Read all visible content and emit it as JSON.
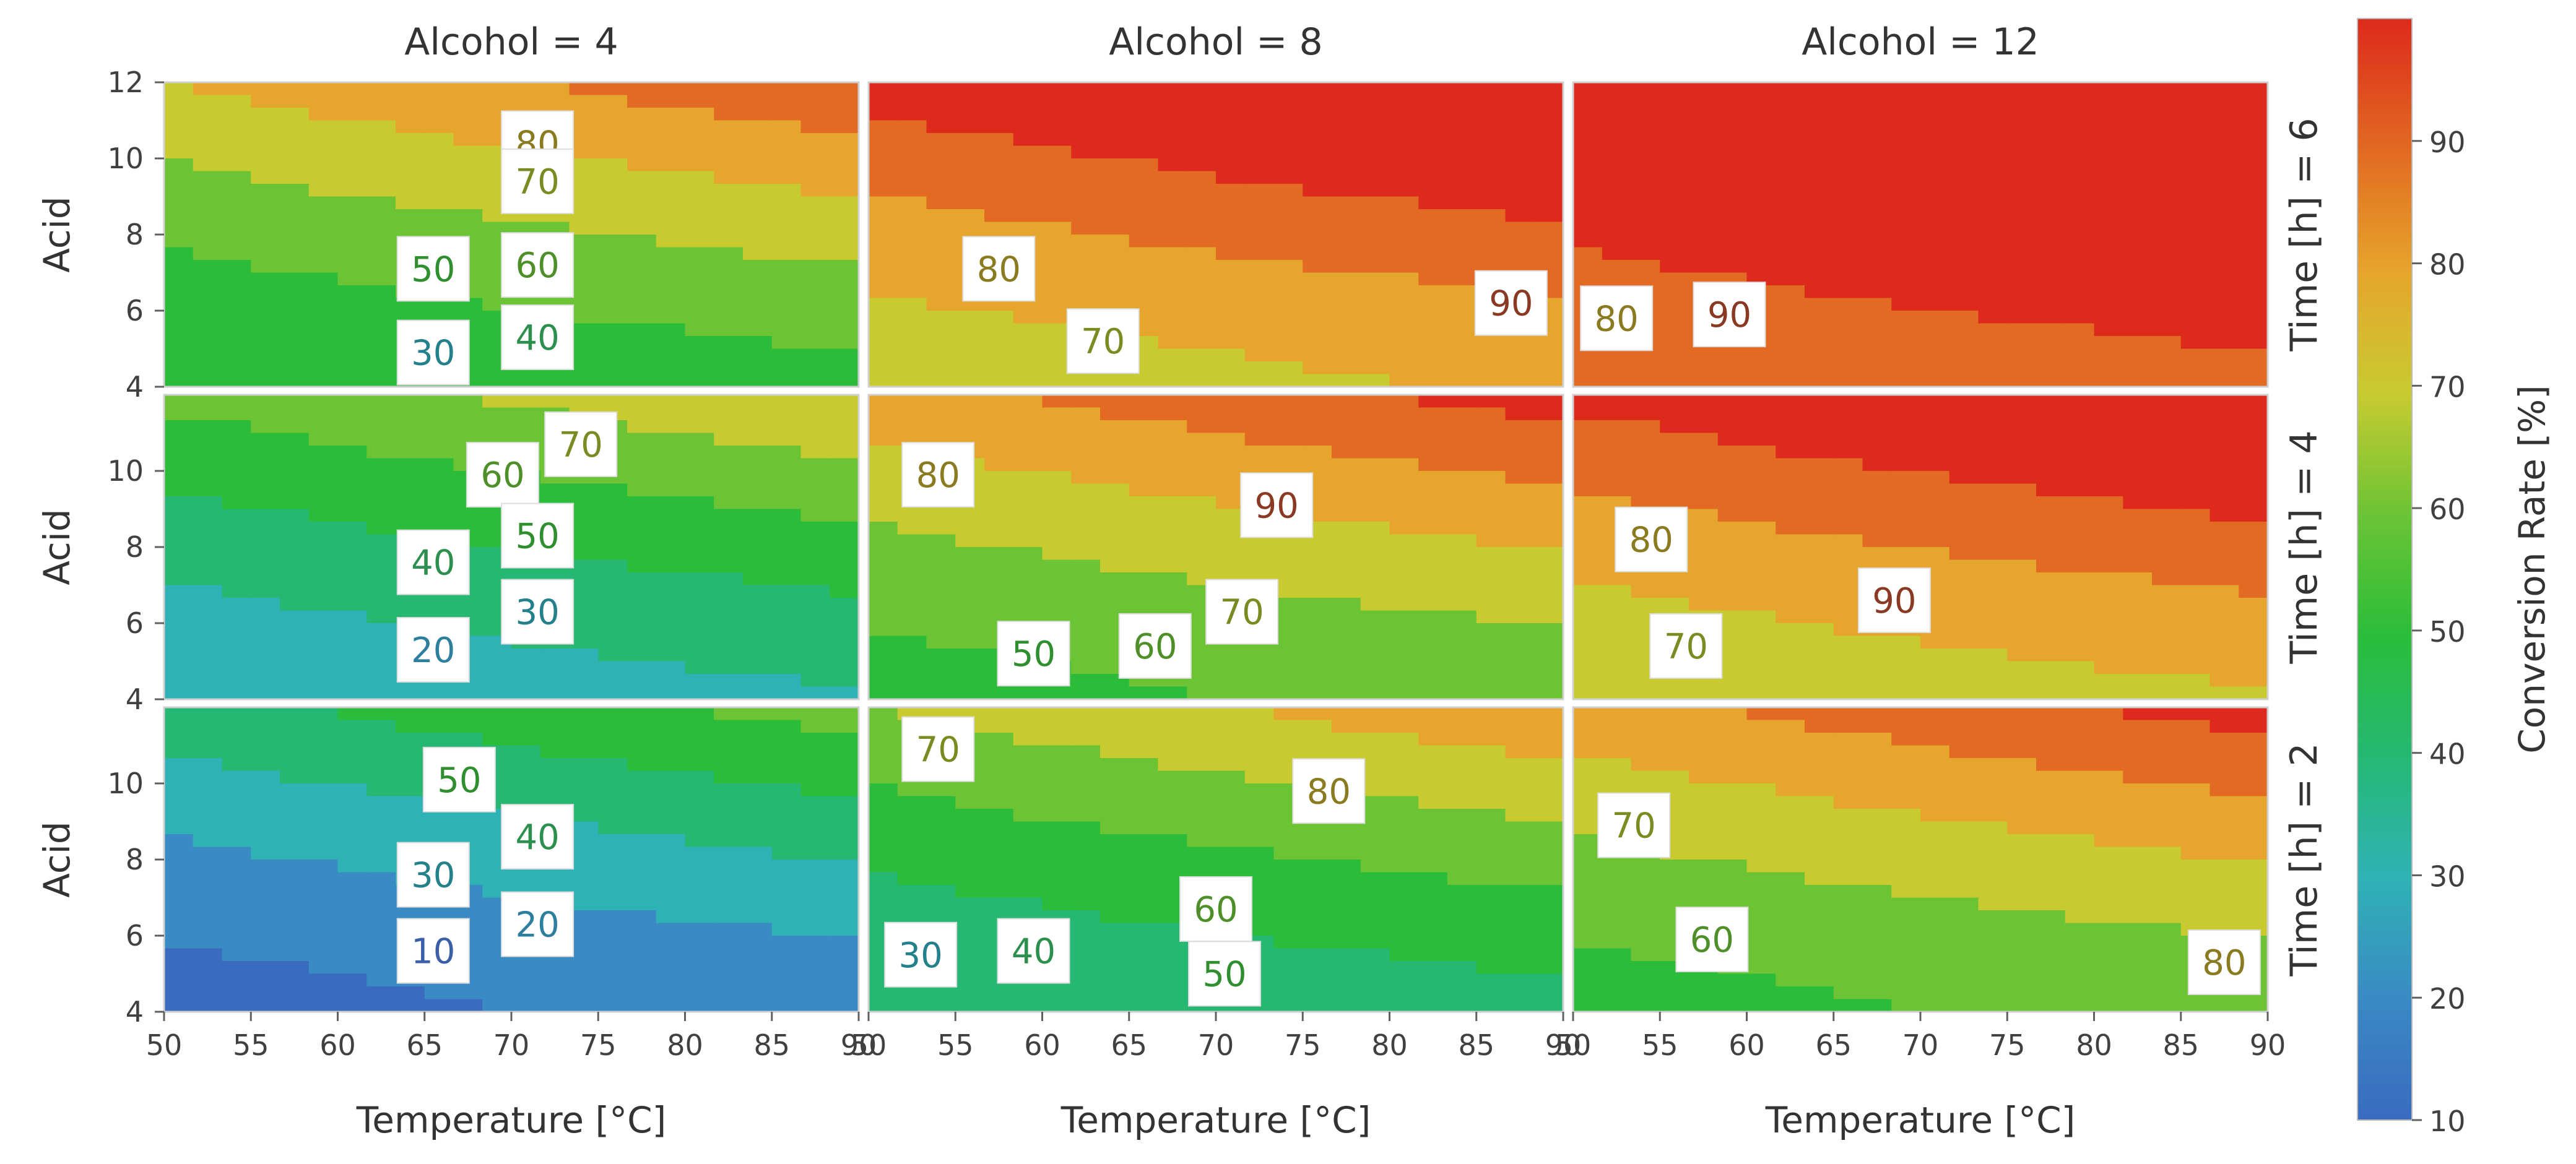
{
  "chart_data": {
    "type": "contour",
    "title": "",
    "xlabel": "Temperature [°C]",
    "ylabel": "Acid",
    "xlim": [
      50,
      90
    ],
    "ylim": [
      4,
      12
    ],
    "x_ticks": [
      "50",
      "55",
      "60",
      "65",
      "70",
      "75",
      "80",
      "85",
      "90"
    ],
    "y_ticks_top": [
      "4",
      "6",
      "8",
      "10",
      "12"
    ],
    "y_ticks": [
      "4",
      "6",
      "8",
      "10"
    ],
    "columns": [
      {
        "label": "Alcohol = 4",
        "alcohol": 4
      },
      {
        "label": "Alcohol = 8",
        "alcohol": 8
      },
      {
        "label": "Alcohol = 12",
        "alcohol": 12
      }
    ],
    "rows": [
      {
        "label": "Time [h] = 6",
        "time": 6
      },
      {
        "label": "Time [h] = 4",
        "time": 4
      },
      {
        "label": "Time [h] = 2",
        "time": 2
      }
    ],
    "colorbar": {
      "label": "Conversion Rate [%]",
      "range": [
        10,
        100
      ],
      "ticks": [
        "10",
        "20",
        "30",
        "40",
        "50",
        "60",
        "70",
        "80",
        "90"
      ]
    },
    "contour_levels": [
      10,
      20,
      30,
      40,
      50,
      60,
      70,
      80,
      90
    ],
    "panels": [
      {
        "row": 0,
        "col": 0,
        "labels": [
          {
            "text": "80",
            "level": 80,
            "x": 71.5,
            "y": 10.4
          },
          {
            "text": "70",
            "level": 70,
            "x": 71.5,
            "y": 9.4
          },
          {
            "text": "60",
            "level": 60,
            "x": 71.5,
            "y": 7.2
          },
          {
            "text": "50",
            "level": 50,
            "x": 65.5,
            "y": 7.1
          },
          {
            "text": "40",
            "level": 40,
            "x": 71.5,
            "y": 5.3
          },
          {
            "text": "30",
            "level": 30,
            "x": 65.5,
            "y": 4.9
          }
        ]
      },
      {
        "row": 0,
        "col": 1,
        "labels": [
          {
            "text": "80",
            "level": 80,
            "x": 57.5,
            "y": 7.1
          },
          {
            "text": "70",
            "level": 70,
            "x": 63.5,
            "y": 5.2
          },
          {
            "text": "90",
            "level": 90,
            "x": 87.0,
            "y": 6.2
          }
        ]
      },
      {
        "row": 0,
        "col": 2,
        "labels": [
          {
            "text": "80",
            "level": 80,
            "x": 52.5,
            "y": 5.8
          },
          {
            "text": "90",
            "level": 90,
            "x": 59.0,
            "y": 5.9
          }
        ]
      },
      {
        "row": 1,
        "col": 0,
        "labels": [
          {
            "text": "70",
            "level": 70,
            "x": 74.0,
            "y": 10.7
          },
          {
            "text": "60",
            "level": 60,
            "x": 69.5,
            "y": 9.9
          },
          {
            "text": "50",
            "level": 50,
            "x": 71.5,
            "y": 8.3
          },
          {
            "text": "40",
            "level": 40,
            "x": 65.5,
            "y": 7.6
          },
          {
            "text": "30",
            "level": 30,
            "x": 71.5,
            "y": 6.3
          },
          {
            "text": "20",
            "level": 20,
            "x": 65.5,
            "y": 5.3
          }
        ]
      },
      {
        "row": 1,
        "col": 1,
        "labels": [
          {
            "text": "80",
            "level": 80,
            "x": 54.0,
            "y": 9.9
          },
          {
            "text": "90",
            "level": 90,
            "x": 73.5,
            "y": 9.1
          },
          {
            "text": "70",
            "level": 70,
            "x": 71.5,
            "y": 6.3
          },
          {
            "text": "60",
            "level": 60,
            "x": 66.5,
            "y": 5.4
          },
          {
            "text": "50",
            "level": 50,
            "x": 59.5,
            "y": 5.2
          }
        ]
      },
      {
        "row": 1,
        "col": 2,
        "labels": [
          {
            "text": "80",
            "level": 80,
            "x": 54.5,
            "y": 8.2
          },
          {
            "text": "90",
            "level": 90,
            "x": 68.5,
            "y": 6.6
          },
          {
            "text": "70",
            "level": 70,
            "x": 56.5,
            "y": 5.4
          }
        ]
      },
      {
        "row": 2,
        "col": 0,
        "labels": [
          {
            "text": "50",
            "level": 50,
            "x": 67.0,
            "y": 10.1
          },
          {
            "text": "40",
            "level": 40,
            "x": 71.5,
            "y": 8.6
          },
          {
            "text": "30",
            "level": 30,
            "x": 65.5,
            "y": 7.6
          },
          {
            "text": "20",
            "level": 20,
            "x": 71.5,
            "y": 6.3
          },
          {
            "text": "10",
            "level": 10,
            "x": 65.5,
            "y": 5.6
          }
        ]
      },
      {
        "row": 2,
        "col": 1,
        "labels": [
          {
            "text": "70",
            "level": 70,
            "x": 54.0,
            "y": 10.9
          },
          {
            "text": "80",
            "level": 80,
            "x": 76.5,
            "y": 9.8
          },
          {
            "text": "60",
            "level": 60,
            "x": 70.0,
            "y": 6.7
          },
          {
            "text": "40",
            "level": 40,
            "x": 59.5,
            "y": 5.6
          },
          {
            "text": "30",
            "level": 30,
            "x": 53.0,
            "y": 5.5
          },
          {
            "text": "50",
            "level": 50,
            "x": 70.5,
            "y": 5.0
          }
        ]
      },
      {
        "row": 2,
        "col": 2,
        "labels": [
          {
            "text": "70",
            "level": 70,
            "x": 53.5,
            "y": 8.9
          },
          {
            "text": "60",
            "level": 60,
            "x": 58.0,
            "y": 5.9
          },
          {
            "text": "80",
            "level": 80,
            "x": 87.5,
            "y": 5.3
          }
        ]
      }
    ]
  }
}
